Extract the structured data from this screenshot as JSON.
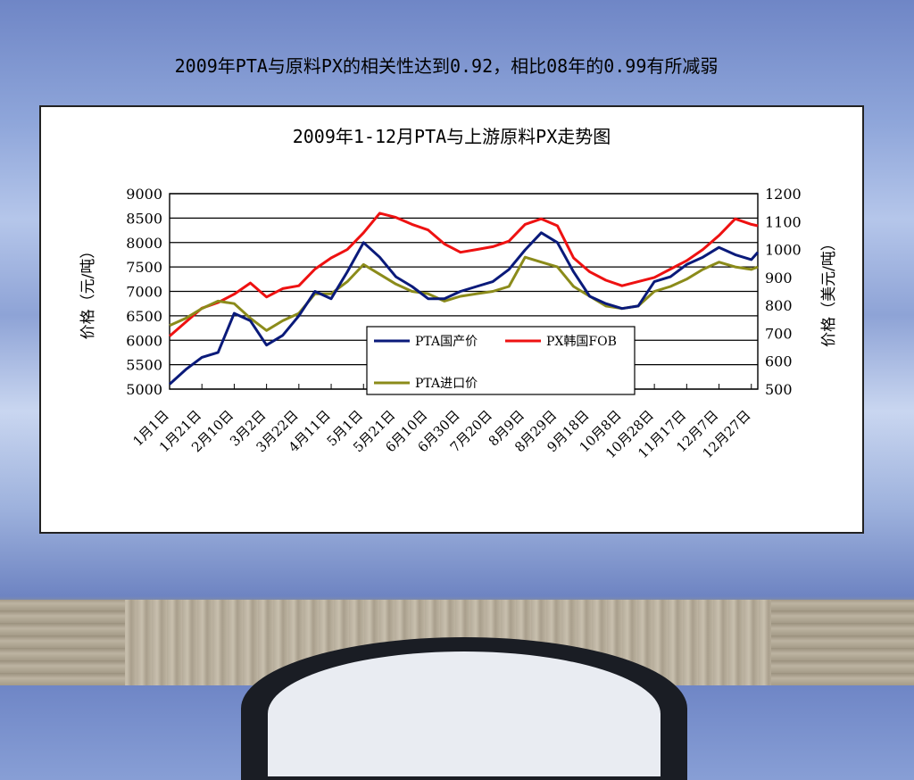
{
  "slide_title": "2009年PTA与原料PX的相关性达到0.92，相比08年的0.99有所减弱",
  "chart_data": {
    "type": "line",
    "title": "2009年1-12月PTA与上游原料PX走势图",
    "ylabel": "价格（元/吨）",
    "y2label": "价格（美元/吨）",
    "ylim": [
      5000,
      9000
    ],
    "y2lim": [
      500,
      1200
    ],
    "yticks": [
      "9000",
      "8500",
      "8000",
      "7500",
      "7000",
      "6500",
      "6000",
      "5500",
      "5000"
    ],
    "y2ticks": [
      "1200",
      "1100",
      "1000",
      "900",
      "800",
      "700",
      "600",
      "500"
    ],
    "xticks": [
      "1月1日",
      "1月21日",
      "2月10日",
      "3月2日",
      "3月22日",
      "4月11日",
      "5月1日",
      "5月21日",
      "6月10日",
      "6月30日",
      "7月20日",
      "8月9日",
      "8月29日",
      "9月18日",
      "10月8日",
      "10月28日",
      "11月17日",
      "12月7日",
      "12月27日"
    ],
    "grid": true,
    "legend_position": "center-bottom",
    "series": [
      {
        "name": "PTA国产价",
        "axis": "left",
        "color": "#0a1a7a",
        "x": [
          "1月1日",
          "1月11日",
          "1月21日",
          "1月31日",
          "2月10日",
          "2月20日",
          "3月2日",
          "3月12日",
          "3月22日",
          "4月1日",
          "4月11日",
          "4月21日",
          "5月1日",
          "5月11日",
          "5月21日",
          "5月31日",
          "6月10日",
          "6月20日",
          "6月30日",
          "7月10日",
          "7月20日",
          "7月30日",
          "8月9日",
          "8月19日",
          "8月29日",
          "9月8日",
          "9月18日",
          "9月28日",
          "10月8日",
          "10月18日",
          "10月28日",
          "11月7日",
          "11月17日",
          "11月27日",
          "12月7日",
          "12月17日",
          "12月27日",
          "12月31日"
        ],
        "values": [
          5100,
          5400,
          5650,
          5750,
          6550,
          6400,
          5900,
          6100,
          6500,
          7000,
          6850,
          7400,
          8000,
          7700,
          7300,
          7100,
          6850,
          6850,
          7000,
          7100,
          7200,
          7450,
          7850,
          8200,
          8000,
          7400,
          6900,
          6750,
          6650,
          6700,
          7200,
          7300,
          7550,
          7700,
          7900,
          7750,
          7650,
          7800
        ]
      },
      {
        "name": "PX韩国FOB",
        "axis": "right",
        "color": "#ee1111",
        "x": [
          "1月1日",
          "1月11日",
          "1月21日",
          "1月31日",
          "2月10日",
          "2月20日",
          "3月2日",
          "3月12日",
          "3月22日",
          "4月1日",
          "4月11日",
          "4月21日",
          "5月1日",
          "5月11日",
          "5月21日",
          "5月31日",
          "6月10日",
          "6月20日",
          "6月30日",
          "7月10日",
          "7月20日",
          "7月30日",
          "8月9日",
          "8月19日",
          "8月29日",
          "9月8日",
          "9月18日",
          "9月28日",
          "10月8日",
          "10月28日",
          "11月7日",
          "11月17日",
          "11月27日",
          "12月7日",
          "12月17日",
          "12月27日",
          "12月31日"
        ],
        "values": [
          690,
          740,
          790,
          810,
          840,
          880,
          830,
          860,
          870,
          930,
          970,
          1000,
          1060,
          1130,
          1115,
          1090,
          1070,
          1020,
          990,
          1000,
          1010,
          1030,
          1090,
          1110,
          1085,
          970,
          920,
          890,
          870,
          900,
          930,
          960,
          1000,
          1050,
          1110,
          1090,
          1085
        ]
      },
      {
        "name": "PTA进口价",
        "axis": "left",
        "color": "#8b8b1a",
        "x": [
          "1月1日",
          "1月11日",
          "1月21日",
          "1月31日",
          "2月10日",
          "2月20日",
          "3月2日",
          "3月12日",
          "3月22日",
          "4月1日",
          "4月11日",
          "4月21日",
          "5月1日",
          "5月11日",
          "5月21日",
          "5月31日",
          "6月10日",
          "6月20日",
          "6月30日",
          "7月10日",
          "7月20日",
          "7月30日",
          "8月9日",
          "8月19日",
          "8月29日",
          "9月8日",
          "9月18日",
          "9月28日",
          "10月8日",
          "10月18日",
          "10月28日",
          "11月7日",
          "11月17日",
          "11月27日",
          "12月7日",
          "12月17日",
          "12月27日",
          "12月31日"
        ],
        "values": [
          6300,
          6450,
          6650,
          6800,
          6750,
          6450,
          6200,
          6400,
          6550,
          6950,
          6950,
          7200,
          7550,
          7350,
          7150,
          7000,
          6950,
          6800,
          6900,
          6950,
          7000,
          7100,
          7700,
          7600,
          7500,
          7100,
          6900,
          6700,
          6650,
          6700,
          7000,
          7100,
          7250,
          7450,
          7600,
          7500,
          7450,
          7500
        ]
      }
    ]
  }
}
